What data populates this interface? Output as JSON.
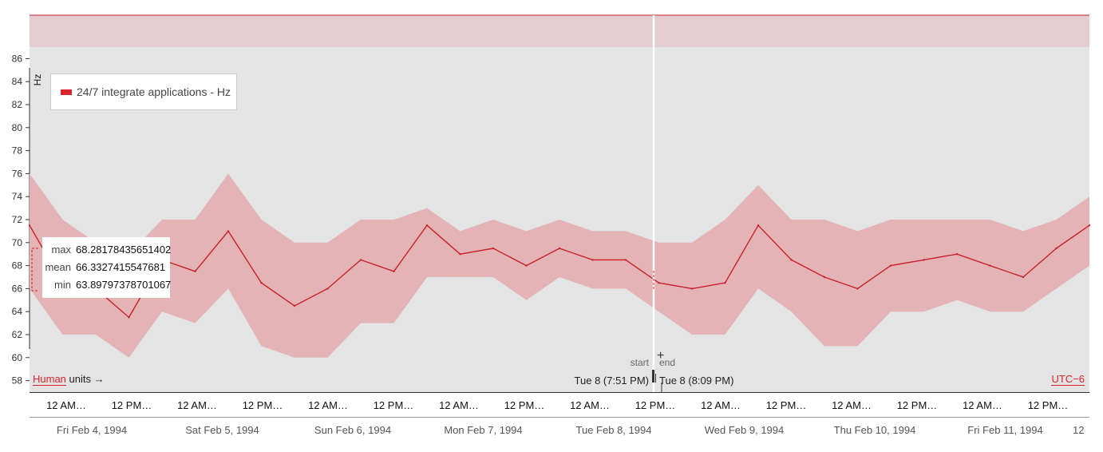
{
  "legend": {
    "label": "24/7 integrate applications - Hz",
    "color": "#d9232d"
  },
  "stats": {
    "max_label": "max",
    "max_value": "68.28178435651402",
    "mean_label": "mean",
    "mean_value": "66.3327415547681",
    "min_label": "min",
    "min_value": "63.89797378701067"
  },
  "units": {
    "link": "Human",
    "suffix": "units →"
  },
  "timezone": "UTC−6",
  "range": {
    "start_label": "start",
    "end_label": "end",
    "start_time": "Tue 8 (7:51 PM)",
    "end_time": "Tue 8 (8:09 PM)"
  },
  "timeline": {
    "hour_labels": [
      "12 AM…",
      "12 PM…",
      "12 AM…",
      "12 PM…",
      "12 AM…",
      "12 PM…",
      "12 AM…",
      "12 PM…",
      "12 AM…",
      "12 PM…",
      "12 AM…",
      "12 PM…",
      "12 AM…",
      "12 PM…",
      "12 AM…",
      "12 PM…"
    ],
    "day_labels": [
      "Fri Feb 4, 1994",
      "Sat Feb 5, 1994",
      "Sun Feb 6, 1994",
      "Mon Feb 7, 1994",
      "Tue Feb 8, 1994",
      "Wed Feb 9, 1994",
      "Thu Feb 10, 1994",
      "Fri Feb 11, 1994"
    ],
    "trailing_label": "12"
  },
  "chart_data": {
    "type": "line",
    "ylabel": "Hz",
    "ylim": [
      57,
      87
    ],
    "yticks": [
      58,
      60,
      62,
      64,
      66,
      68,
      70,
      72,
      74,
      76,
      78,
      80,
      82,
      84,
      86
    ],
    "xlim": [
      "1994-02-04",
      "1994-02-12"
    ],
    "colors": {
      "line": "#c8202a",
      "band": "#e3b3b6",
      "plot_bg": "#e4e4e4",
      "top_band": "#e3cdd0"
    },
    "series": [
      {
        "name": "24/7 integrate applications - Hz",
        "x": [
          "1994-02-04 00:00",
          "1994-02-04 06:00",
          "1994-02-04 12:00",
          "1994-02-04 18:00",
          "1994-02-05 00:00",
          "1994-02-05 06:00",
          "1994-02-05 12:00",
          "1994-02-05 18:00",
          "1994-02-06 00:00",
          "1994-02-06 06:00",
          "1994-02-06 12:00",
          "1994-02-06 18:00",
          "1994-02-07 00:00",
          "1994-02-07 06:00",
          "1994-02-07 12:00",
          "1994-02-07 18:00",
          "1994-02-08 00:00",
          "1994-02-08 06:00",
          "1994-02-08 12:00",
          "1994-02-08 18:00",
          "1994-02-09 00:00",
          "1994-02-09 06:00",
          "1994-02-09 12:00",
          "1994-02-09 18:00",
          "1994-02-10 00:00",
          "1994-02-10 06:00",
          "1994-02-10 12:00",
          "1994-02-10 18:00",
          "1994-02-11 00:00",
          "1994-02-11 06:00",
          "1994-02-11 12:00",
          "1994-02-11 18:00",
          "1994-02-12 00:00"
        ],
        "values": [
          71.5,
          66.5,
          66.0,
          63.5,
          68.5,
          67.5,
          71.0,
          66.5,
          64.5,
          66.0,
          68.5,
          67.5,
          71.5,
          69.0,
          69.5,
          68.0,
          69.5,
          68.5,
          68.5,
          66.5,
          66.0,
          66.5,
          71.5,
          68.5,
          67.0,
          66.0,
          68.0,
          68.5,
          69.0,
          68.0,
          67.0,
          69.5,
          71.5
        ],
        "upper": [
          76.0,
          72.0,
          70.0,
          69.0,
          72.0,
          72.0,
          76.0,
          72.0,
          70.0,
          70.0,
          72.0,
          72.0,
          73.0,
          71.0,
          72.0,
          71.0,
          72.0,
          71.0,
          71.0,
          70.0,
          70.0,
          72.0,
          75.0,
          72.0,
          72.0,
          71.0,
          72.0,
          72.0,
          72.0,
          72.0,
          71.0,
          72.0,
          74.0
        ],
        "lower": [
          66.0,
          62.0,
          62.0,
          60.0,
          64.0,
          63.0,
          66.0,
          61.0,
          60.0,
          60.0,
          63.0,
          63.0,
          67.0,
          67.0,
          67.0,
          65.0,
          67.0,
          66.0,
          66.0,
          64.0,
          62.0,
          62.0,
          66.0,
          64.0,
          61.0,
          61.0,
          64.0,
          64.0,
          65.0,
          64.0,
          64.0,
          66.0,
          68.0
        ]
      }
    ]
  }
}
